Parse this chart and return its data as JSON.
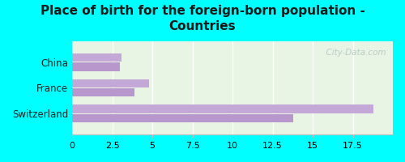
{
  "title": "Place of birth for the foreign-born population -\nCountries",
  "background_color": "#00FFFF",
  "chart_bg_color": "#e8f5e4",
  "categories": [
    "China",
    "France",
    "Switzerland"
  ],
  "bar1_values": [
    18.8,
    4.8,
    3.1
  ],
  "bar2_values": [
    13.8,
    3.9,
    3.0
  ],
  "bar1_color": "#c4a8d8",
  "bar2_color": "#b898cc",
  "xlim": [
    0,
    20.0
  ],
  "xticks": [
    0,
    2.5,
    5,
    7.5,
    10,
    12.5,
    15,
    17.5
  ],
  "xtick_labels": [
    "0",
    "2.5",
    "5",
    "7.5",
    "10",
    "12.5",
    "15",
    "17.5"
  ],
  "watermark": "  City-Data.com",
  "title_fontsize": 11,
  "tick_fontsize": 8,
  "label_fontsize": 8.5,
  "figsize": [
    5.0,
    2.0
  ],
  "dpi": 100
}
